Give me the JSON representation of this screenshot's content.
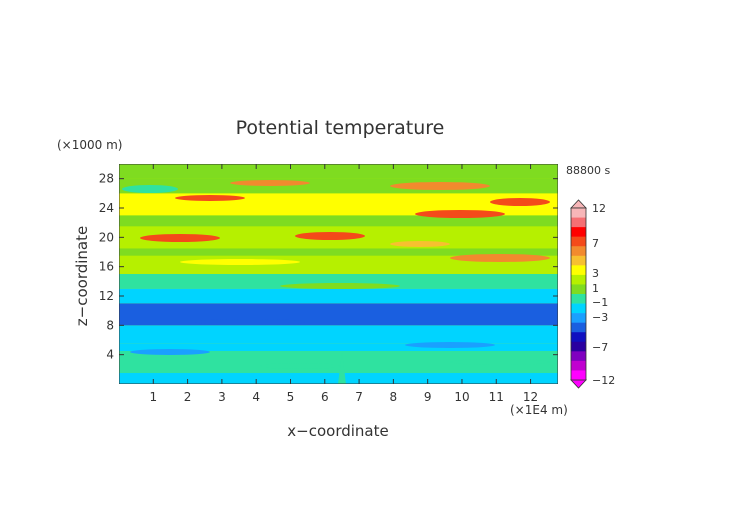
{
  "chart_data": {
    "type": "heatmap",
    "title": "Potential temperature",
    "xlabel": "x−coordinate",
    "ylabel": "z−coordinate",
    "x_unit": "(×1E4 m)",
    "y_unit": "(×1000 m)",
    "time_label": "88800 s",
    "xlim": [
      0,
      12.8
    ],
    "ylim": [
      0,
      30
    ],
    "x_ticks": [
      1,
      2,
      3,
      4,
      5,
      6,
      7,
      8,
      9,
      10,
      11,
      12
    ],
    "y_ticks": [
      4,
      8,
      12,
      16,
      20,
      24,
      28
    ],
    "colorbar": {
      "extend": "both",
      "levels": [
        -12,
        -7,
        -3,
        -1,
        1,
        3,
        7,
        12
      ],
      "tick_labels": [
        "12",
        "7",
        "3",
        "1",
        "−1",
        "−3",
        "−7",
        "−12"
      ],
      "colors_top_to_bottom": [
        "#f7b6b8",
        "#f56f73",
        "#ff0000",
        "#f44a1a",
        "#f28a2e",
        "#f7c030",
        "#ffff00",
        "#b6f000",
        "#7fdc20",
        "#2fe2a0",
        "#00d4ff",
        "#1aa0ff",
        "#1a5fe0",
        "#1010c0",
        "#2a00a0",
        "#8000c0",
        "#c000d0",
        "#ff00ff"
      ]
    },
    "bands": [
      {
        "z": [
          0,
          1.5
        ],
        "value": -1.5
      },
      {
        "z": [
          1.5,
          4.5
        ],
        "value": -1.0
      },
      {
        "z": [
          4.5,
          5.5
        ],
        "value": -2.0
      },
      {
        "z": [
          5.5,
          8.0
        ],
        "value": -2.0
      },
      {
        "z": [
          8.0,
          11.0
        ],
        "value": -5.0
      },
      {
        "z": [
          11.0,
          13.0
        ],
        "value": -2.5
      },
      {
        "z": [
          13.0,
          15.0
        ],
        "value": -0.5
      },
      {
        "z": [
          15.0,
          17.5
        ],
        "value": 1.5
      },
      {
        "z": [
          17.5,
          18.5
        ],
        "value": 0.5
      },
      {
        "z": [
          18.5,
          21.5
        ],
        "value": 2.5
      },
      {
        "z": [
          21.5,
          23.0
        ],
        "value": 1.0
      },
      {
        "z": [
          23.0,
          26.0
        ],
        "value": 3.0
      },
      {
        "z": [
          26.0,
          28.0
        ],
        "value": 0.5
      },
      {
        "z": [
          28.0,
          30.0
        ],
        "value": 0.5
      }
    ]
  }
}
